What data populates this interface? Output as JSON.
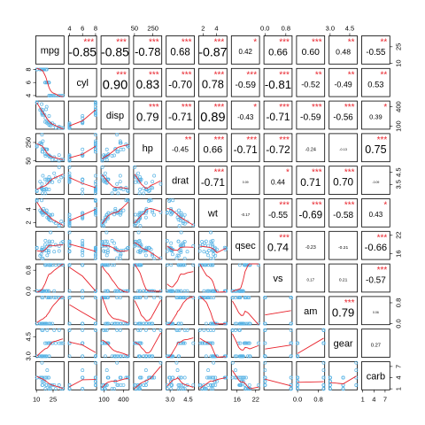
{
  "chart_data": {
    "type": "scatter",
    "title": "",
    "variables": [
      "mpg",
      "cyl",
      "disp",
      "hp",
      "drat",
      "wt",
      "qsec",
      "vs",
      "am",
      "gear",
      "carb"
    ],
    "lower_panels": "scatterplot with loess smooth line",
    "upper_panels": "correlation coefficient with significance stars",
    "significance_markers": [
      "*",
      "**",
      "***"
    ],
    "upper_values": [
      {
        "row": "mpg",
        "col": "cyl",
        "r": -0.85,
        "stars": "***"
      },
      {
        "row": "mpg",
        "col": "disp",
        "r": -0.85,
        "stars": "***"
      },
      {
        "row": "mpg",
        "col": "hp",
        "r": -0.78,
        "stars": "***"
      },
      {
        "row": "mpg",
        "col": "drat",
        "r": 0.68,
        "stars": "***"
      },
      {
        "row": "mpg",
        "col": "wt",
        "r": -0.87,
        "stars": "***"
      },
      {
        "row": "mpg",
        "col": "qsec",
        "r": 0.42,
        "stars": "*"
      },
      {
        "row": "mpg",
        "col": "vs",
        "r": 0.66,
        "stars": "***"
      },
      {
        "row": "mpg",
        "col": "am",
        "r": 0.6,
        "stars": "***"
      },
      {
        "row": "mpg",
        "col": "gear",
        "r": 0.48,
        "stars": "**"
      },
      {
        "row": "mpg",
        "col": "carb",
        "r": -0.55,
        "stars": "**"
      },
      {
        "row": "cyl",
        "col": "disp",
        "r": 0.9,
        "stars": "***"
      },
      {
        "row": "cyl",
        "col": "hp",
        "r": 0.83,
        "stars": "***"
      },
      {
        "row": "cyl",
        "col": "drat",
        "r": -0.7,
        "stars": "***"
      },
      {
        "row": "cyl",
        "col": "wt",
        "r": 0.78,
        "stars": "***"
      },
      {
        "row": "cyl",
        "col": "qsec",
        "r": -0.59,
        "stars": "***"
      },
      {
        "row": "cyl",
        "col": "vs",
        "r": -0.81,
        "stars": "***"
      },
      {
        "row": "cyl",
        "col": "am",
        "r": -0.52,
        "stars": "**"
      },
      {
        "row": "cyl",
        "col": "gear",
        "r": -0.49,
        "stars": "**"
      },
      {
        "row": "cyl",
        "col": "carb",
        "r": 0.53,
        "stars": "**"
      },
      {
        "row": "disp",
        "col": "hp",
        "r": 0.79,
        "stars": "***"
      },
      {
        "row": "disp",
        "col": "drat",
        "r": -0.71,
        "stars": "***"
      },
      {
        "row": "disp",
        "col": "wt",
        "r": 0.89,
        "stars": "***"
      },
      {
        "row": "disp",
        "col": "qsec",
        "r": -0.43,
        "stars": "*"
      },
      {
        "row": "disp",
        "col": "vs",
        "r": -0.71,
        "stars": "***"
      },
      {
        "row": "disp",
        "col": "am",
        "r": -0.59,
        "stars": "***"
      },
      {
        "row": "disp",
        "col": "gear",
        "r": -0.56,
        "stars": "***"
      },
      {
        "row": "disp",
        "col": "carb",
        "r": 0.39,
        "stars": "*"
      },
      {
        "row": "hp",
        "col": "drat",
        "r": -0.45,
        "stars": "**"
      },
      {
        "row": "hp",
        "col": "wt",
        "r": 0.66,
        "stars": "***"
      },
      {
        "row": "hp",
        "col": "qsec",
        "r": -0.71,
        "stars": "***"
      },
      {
        "row": "hp",
        "col": "vs",
        "r": -0.72,
        "stars": "***"
      },
      {
        "row": "hp",
        "col": "am",
        "r": -0.24,
        "stars": ""
      },
      {
        "row": "hp",
        "col": "gear",
        "r": -0.13,
        "stars": ""
      },
      {
        "row": "hp",
        "col": "carb",
        "r": 0.75,
        "stars": "***"
      },
      {
        "row": "drat",
        "col": "wt",
        "r": -0.71,
        "stars": "***"
      },
      {
        "row": "drat",
        "col": "qsec",
        "r": 0.09,
        "stars": ""
      },
      {
        "row": "drat",
        "col": "vs",
        "r": 0.44,
        "stars": "*"
      },
      {
        "row": "drat",
        "col": "am",
        "r": 0.71,
        "stars": "***"
      },
      {
        "row": "drat",
        "col": "gear",
        "r": 0.7,
        "stars": "***"
      },
      {
        "row": "drat",
        "col": "carb",
        "r": -0.09,
        "stars": ""
      },
      {
        "row": "wt",
        "col": "qsec",
        "r": -0.17,
        "stars": ""
      },
      {
        "row": "wt",
        "col": "vs",
        "r": -0.55,
        "stars": "***"
      },
      {
        "row": "wt",
        "col": "am",
        "r": -0.69,
        "stars": "***"
      },
      {
        "row": "wt",
        "col": "gear",
        "r": -0.58,
        "stars": "***"
      },
      {
        "row": "wt",
        "col": "carb",
        "r": 0.43,
        "stars": "*"
      },
      {
        "row": "qsec",
        "col": "vs",
        "r": 0.74,
        "stars": "***"
      },
      {
        "row": "qsec",
        "col": "am",
        "r": -0.23,
        "stars": ""
      },
      {
        "row": "qsec",
        "col": "gear",
        "r": -0.21,
        "stars": ""
      },
      {
        "row": "qsec",
        "col": "carb",
        "r": -0.66,
        "stars": "***"
      },
      {
        "row": "vs",
        "col": "am",
        "r": 0.17,
        "stars": ""
      },
      {
        "row": "vs",
        "col": "gear",
        "r": 0.21,
        "stars": ""
      },
      {
        "row": "vs",
        "col": "carb",
        "r": -0.57,
        "stars": "***"
      },
      {
        "row": "am",
        "col": "gear",
        "r": 0.79,
        "stars": "***"
      },
      {
        "row": "am",
        "col": "carb",
        "r": 0.06,
        "stars": ""
      },
      {
        "row": "gear",
        "col": "carb",
        "r": 0.27,
        "stars": ""
      }
    ],
    "axis_ticks": {
      "top": [
        {
          "var": "cyl",
          "labels": [
            "4",
            "6",
            "8"
          ],
          "values": [
            4,
            6,
            8
          ]
        },
        {
          "var": "hp",
          "labels": [
            "50",
            "250"
          ],
          "values": [
            50,
            250
          ]
        },
        {
          "var": "wt",
          "labels": [
            "2",
            "4"
          ],
          "values": [
            2,
            4
          ]
        },
        {
          "var": "vs",
          "labels": [
            "0.0",
            "0.8"
          ],
          "values": [
            0,
            0.8
          ]
        },
        {
          "var": "gear",
          "labels": [
            "3.0",
            "4.5"
          ],
          "values": [
            3,
            4.5
          ]
        }
      ],
      "bottom": [
        {
          "var": "mpg",
          "labels": [
            "10",
            "25"
          ],
          "values": [
            10,
            25
          ]
        },
        {
          "var": "disp",
          "labels": [
            "100",
            "400"
          ],
          "values": [
            100,
            400
          ]
        },
        {
          "var": "drat",
          "labels": [
            "3.0",
            "4.5"
          ],
          "values": [
            3,
            4.5
          ]
        },
        {
          "var": "qsec",
          "labels": [
            "16",
            "22"
          ],
          "values": [
            16,
            22
          ]
        },
        {
          "var": "am",
          "labels": [
            "0.0",
            "0.8"
          ],
          "values": [
            0,
            0.8
          ]
        },
        {
          "var": "carb",
          "labels": [
            "1",
            "4",
            "7"
          ],
          "values": [
            1,
            4,
            7
          ]
        }
      ],
      "left": [
        {
          "var": "cyl",
          "labels": [
            "4",
            "6",
            "8"
          ],
          "values": [
            4,
            6,
            8
          ]
        },
        {
          "var": "hp",
          "labels": [
            "50",
            "250"
          ],
          "values": [
            50,
            250
          ]
        },
        {
          "var": "wt",
          "labels": [
            "2",
            "4"
          ],
          "values": [
            2,
            4
          ]
        },
        {
          "var": "vs",
          "labels": [
            "0.0",
            "0.8"
          ],
          "values": [
            0,
            0.8
          ]
        },
        {
          "var": "gear",
          "labels": [
            "3.0",
            "4.5"
          ],
          "values": [
            3,
            4.5
          ]
        }
      ],
      "right": [
        {
          "var": "mpg",
          "labels": [
            "10",
            "25"
          ],
          "values": [
            10,
            25
          ]
        },
        {
          "var": "disp",
          "labels": [
            "100",
            "400"
          ],
          "values": [
            100,
            400
          ]
        },
        {
          "var": "drat",
          "labels": [
            "3.5",
            "4.5"
          ],
          "values": [
            3.5,
            4.5
          ]
        },
        {
          "var": "qsec",
          "labels": [
            "16",
            "22"
          ],
          "values": [
            16,
            22
          ]
        },
        {
          "var": "am",
          "labels": [
            "0.0",
            "0.8"
          ],
          "values": [
            0,
            0.8
          ]
        },
        {
          "var": "carb",
          "labels": [
            "1",
            "4",
            "7"
          ],
          "values": [
            1,
            4,
            7
          ]
        }
      ]
    },
    "ranges": {
      "mpg": [
        10.4,
        33.9
      ],
      "cyl": [
        4,
        8
      ],
      "disp": [
        71.1,
        472
      ],
      "hp": [
        52,
        335
      ],
      "drat": [
        2.76,
        4.93
      ],
      "wt": [
        1.513,
        5.424
      ],
      "qsec": [
        14.5,
        22.9
      ],
      "vs": [
        0,
        1
      ],
      "am": [
        0,
        1
      ],
      "gear": [
        3,
        5
      ],
      "carb": [
        1,
        8
      ]
    },
    "data": {
      "mpg": [
        21,
        21,
        22.8,
        21.4,
        18.7,
        18.1,
        14.3,
        24.4,
        22.8,
        19.2,
        17.8,
        16.4,
        17.3,
        15.2,
        10.4,
        10.4,
        14.7,
        32.4,
        30.4,
        33.9,
        21.5,
        15.5,
        15.2,
        13.3,
        19.2,
        27.3,
        26,
        30.4,
        15.8,
        19.7,
        15,
        21.4
      ],
      "cyl": [
        6,
        6,
        4,
        6,
        8,
        6,
        8,
        4,
        4,
        6,
        6,
        8,
        8,
        8,
        8,
        8,
        8,
        4,
        4,
        4,
        4,
        8,
        8,
        8,
        8,
        4,
        4,
        4,
        8,
        6,
        8,
        4
      ],
      "disp": [
        160,
        160,
        108,
        258,
        360,
        225,
        360,
        146.7,
        140.8,
        167.6,
        167.6,
        275.8,
        275.8,
        275.8,
        472,
        460,
        440,
        78.7,
        75.7,
        71.1,
        120.1,
        318,
        304,
        350,
        400,
        79,
        120.3,
        95.1,
        351,
        145,
        301,
        121
      ],
      "hp": [
        110,
        110,
        93,
        110,
        175,
        105,
        245,
        62,
        95,
        123,
        123,
        180,
        180,
        180,
        205,
        215,
        230,
        66,
        52,
        65,
        97,
        150,
        150,
        245,
        175,
        66,
        91,
        113,
        264,
        175,
        335,
        109
      ],
      "drat": [
        3.9,
        3.9,
        3.85,
        3.08,
        3.15,
        2.76,
        3.21,
        3.69,
        3.92,
        3.92,
        3.92,
        3.07,
        3.07,
        3.07,
        2.93,
        3,
        3.23,
        4.08,
        4.93,
        4.22,
        3.7,
        2.76,
        3.15,
        3.73,
        3.08,
        4.08,
        4.43,
        3.77,
        4.22,
        3.62,
        3.54,
        4.11
      ],
      "wt": [
        2.62,
        2.875,
        2.32,
        3.215,
        3.44,
        3.46,
        3.57,
        3.19,
        3.15,
        3.44,
        3.44,
        4.07,
        3.73,
        3.78,
        5.25,
        5.424,
        5.345,
        2.2,
        1.615,
        1.835,
        2.465,
        3.52,
        3.435,
        3.84,
        3.845,
        1.935,
        2.14,
        1.513,
        3.17,
        2.77,
        3.57,
        2.78
      ],
      "qsec": [
        16.46,
        17.02,
        18.61,
        19.44,
        17.02,
        20.22,
        15.84,
        20,
        22.9,
        18.3,
        18.9,
        17.4,
        17.6,
        18,
        17.98,
        17.82,
        17.42,
        19.47,
        18.52,
        19.9,
        20.01,
        16.87,
        17.3,
        15.41,
        17.05,
        18.9,
        16.7,
        16.9,
        14.5,
        15.5,
        14.6,
        18.6
      ],
      "vs": [
        0,
        0,
        1,
        1,
        0,
        1,
        0,
        1,
        1,
        1,
        1,
        0,
        0,
        0,
        0,
        0,
        0,
        1,
        1,
        1,
        1,
        0,
        0,
        0,
        0,
        1,
        0,
        1,
        0,
        0,
        0,
        1
      ],
      "am": [
        1,
        1,
        1,
        0,
        0,
        0,
        0,
        0,
        0,
        0,
        0,
        0,
        0,
        0,
        0,
        0,
        0,
        1,
        1,
        1,
        0,
        0,
        0,
        0,
        0,
        1,
        1,
        1,
        1,
        1,
        1,
        1
      ],
      "gear": [
        4,
        4,
        4,
        3,
        3,
        3,
        3,
        4,
        4,
        4,
        4,
        3,
        3,
        3,
        3,
        3,
        3,
        4,
        4,
        4,
        3,
        3,
        3,
        3,
        3,
        4,
        5,
        5,
        5,
        5,
        5,
        4
      ],
      "carb": [
        4,
        4,
        1,
        1,
        2,
        1,
        4,
        2,
        2,
        4,
        4,
        3,
        3,
        3,
        4,
        4,
        4,
        1,
        2,
        1,
        1,
        2,
        2,
        4,
        2,
        1,
        2,
        2,
        4,
        6,
        8,
        2
      ]
    },
    "colors": {
      "points": "#5bb4e5",
      "smooth": "#e8212a",
      "stars": "#e8212a",
      "text": "#000000",
      "panel_border": "#000000"
    }
  }
}
